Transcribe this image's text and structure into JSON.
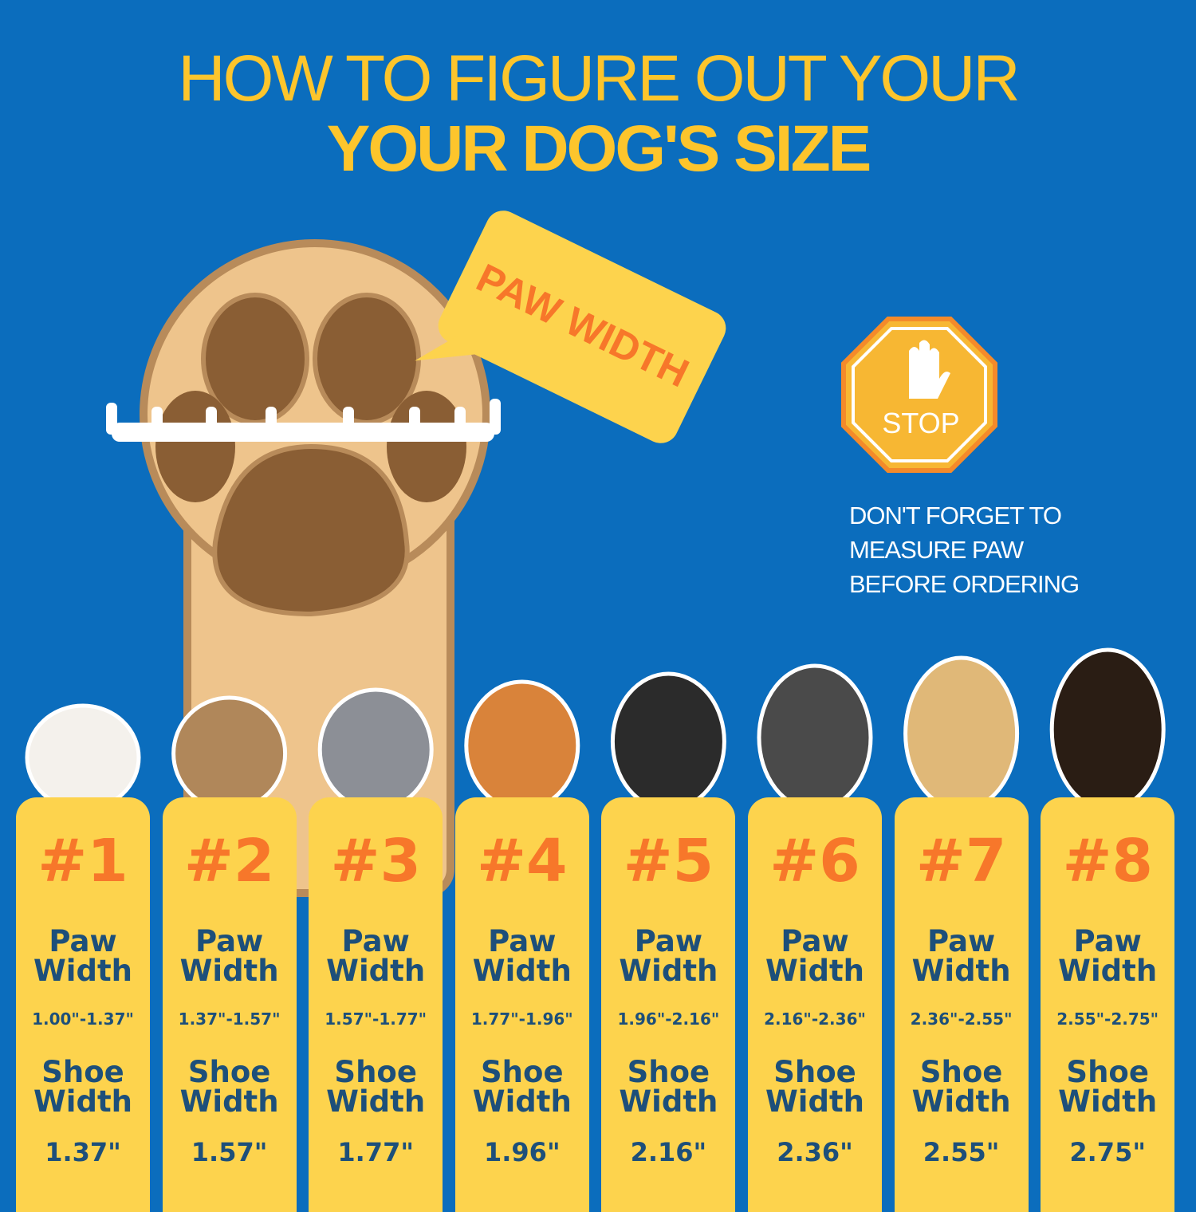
{
  "header": {
    "line1": "HOW TO FIGURE OUT YOUR",
    "line2": "YOUR DOG'S SIZE"
  },
  "callout": "PAW WIDTH",
  "stop_sign": "STOP",
  "note": [
    "DON'T FORGET TO",
    "MEASURE PAW",
    "BEFORE ORDERING"
  ],
  "cards": [
    {
      "number": "#1",
      "paw_label": "Paw Width",
      "paw_range": "1.00\"-1.37\"",
      "shoe_label": "Shoe Width",
      "shoe_width": "1.37\""
    },
    {
      "number": "#2",
      "paw_label": "Paw Width",
      "paw_range": "1.37\"-1.57\"",
      "shoe_label": "Shoe Width",
      "shoe_width": "1.57\""
    },
    {
      "number": "#3",
      "paw_label": "Paw Width",
      "paw_range": "1.57\"-1.77\"",
      "shoe_label": "Shoe Width",
      "shoe_width": "1.77\""
    },
    {
      "number": "#4",
      "paw_label": "Paw Width",
      "paw_range": "1.77\"-1.96\"",
      "shoe_label": "Shoe Width",
      "shoe_width": "1.96\""
    },
    {
      "number": "#5",
      "paw_label": "Paw Width",
      "paw_range": "1.96\"-2.16\"",
      "shoe_label": "Shoe Width",
      "shoe_width": "2.16\""
    },
    {
      "number": "#6",
      "paw_label": "Paw Width",
      "paw_range": "2.16\"-2.36\"",
      "shoe_label": "Shoe Width",
      "shoe_width": "2.36\""
    },
    {
      "number": "#7",
      "paw_label": "Paw Width",
      "paw_range": "2.36\"-2.55\"",
      "shoe_label": "Shoe Width",
      "shoe_width": "2.55\""
    },
    {
      "number": "#8",
      "paw_label": "Paw Width",
      "paw_range": "2.55\"-2.75\"",
      "shoe_label": "Shoe Width",
      "shoe_width": "2.75\""
    }
  ]
}
